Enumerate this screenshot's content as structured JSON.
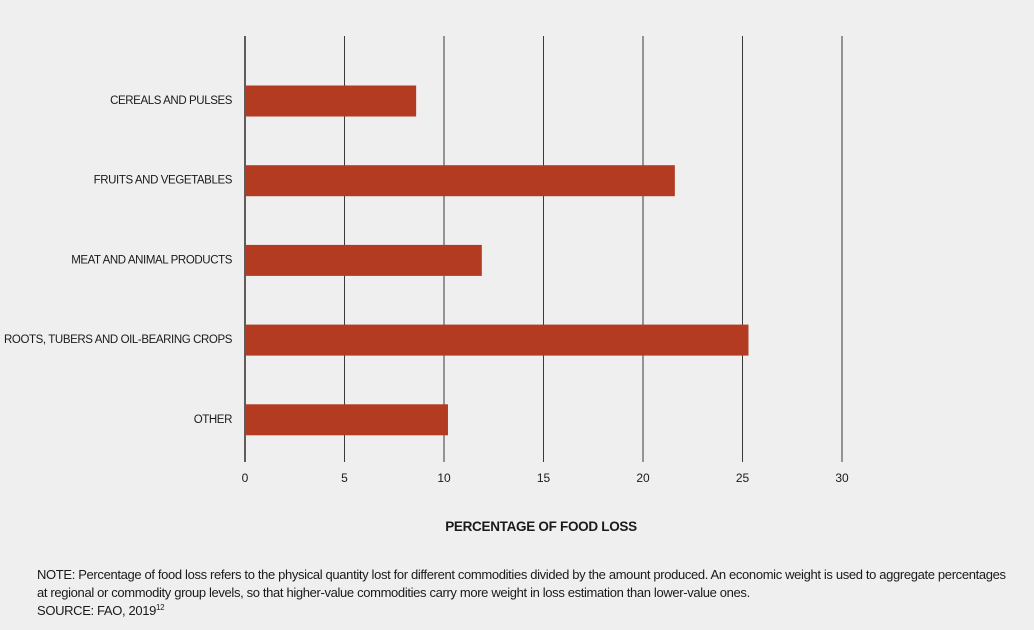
{
  "chart_data": {
    "type": "bar",
    "orientation": "horizontal",
    "categories": [
      "CEREALS AND PULSES",
      "FRUITS AND VEGETABLES",
      "MEAT AND ANIMAL PRODUCTS",
      "ROOTS, TUBERS AND OIL-BEARING CROPS",
      "OTHER"
    ],
    "values": [
      8.6,
      21.6,
      11.9,
      25.3,
      10.2
    ],
    "xlabel": "PERCENTAGE OF FOOD LOSS",
    "ylabel": "",
    "xlim": [
      0,
      30
    ],
    "xticks": [
      "0",
      "5",
      "10",
      "15",
      "20",
      "25",
      "30"
    ],
    "grid": "vertical",
    "bar_color": "#b33b22"
  },
  "footer": {
    "note": "NOTE: Percentage of food loss refers to the physical quantity lost for different commodities divided by the amount produced. An economic weight is used to aggregate percentages at regional or commodity group levels, so that higher-value commodities carry more weight in loss estimation than lower-value ones.",
    "source": "SOURCE: FAO, 2019",
    "source_ref": "12"
  }
}
